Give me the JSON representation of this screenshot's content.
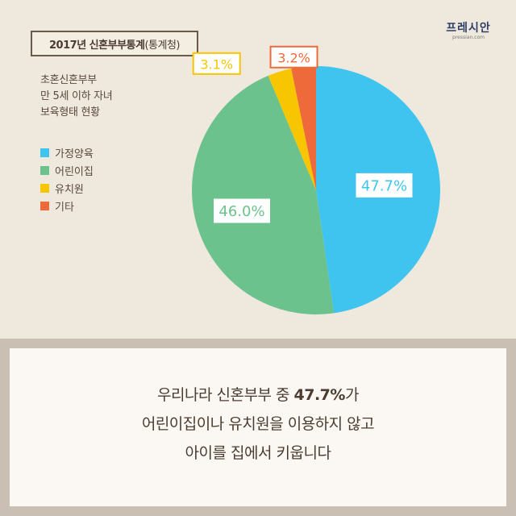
{
  "header": {
    "title_bold": "2017년 신혼부부통계",
    "title_paren": "(통계청)",
    "subtitle_lines": [
      "초혼신혼부부",
      "만 5세 이하 자녀",
      "보육형태 현황"
    ]
  },
  "logo": {
    "name": "프레시안",
    "url": "pressian.com"
  },
  "legend": [
    {
      "label": "가정양육",
      "color": "#3fc4f0"
    },
    {
      "label": "어린이집",
      "color": "#6cc28d"
    },
    {
      "label": "유치원",
      "color": "#f7c600"
    },
    {
      "label": "기타",
      "color": "#ef6a3a"
    }
  ],
  "chart_data": {
    "type": "pie",
    "title": "",
    "slices": [
      {
        "label": "가정양육",
        "value": 47.7,
        "display": "47.7%",
        "color": "#3fc4f0"
      },
      {
        "label": "어린이집",
        "value": 46.0,
        "display": "46.0%",
        "color": "#6cc28d"
      },
      {
        "label": "유치원",
        "value": 3.1,
        "display": "3.1%",
        "color": "#f7c600"
      },
      {
        "label": "기타",
        "value": 3.2,
        "display": "3.2%",
        "color": "#ef6a3a"
      }
    ]
  },
  "message": {
    "line1_pre": "우리나라 신혼부부 중 ",
    "line1_highlight": "47.7%",
    "line1_post": "가",
    "line2": "어린이집이나 유치원을 이용하지 않고",
    "line3": "아이를 집에서 키웁니다"
  }
}
